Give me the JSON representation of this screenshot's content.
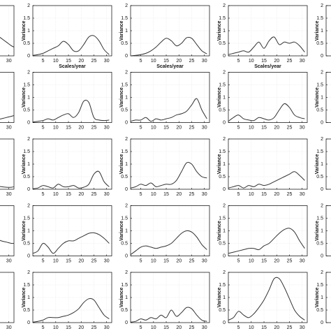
{
  "chart_data": [
    {
      "type": "line",
      "x": [
        25,
        27,
        29,
        31,
        32
      ],
      "values": [
        0.85,
        0.7,
        0.55,
        0.4,
        0.35
      ],
      "color": "#333",
      "xlim": [
        1,
        32
      ],
      "ylim": [
        0,
        2
      ],
      "xticks": [
        30
      ]
    },
    {
      "type": "line",
      "x": [
        1,
        3,
        5,
        7,
        9,
        11,
        13,
        15,
        17,
        19,
        21,
        23,
        25,
        27,
        29,
        31
      ],
      "values": [
        0.02,
        0.05,
        0.1,
        0.2,
        0.3,
        0.4,
        0.58,
        0.45,
        0.2,
        0.2,
        0.45,
        0.75,
        0.8,
        0.6,
        0.25,
        0.05
      ],
      "color": "#333",
      "xlim": [
        1,
        32
      ],
      "ylim": [
        0,
        2
      ],
      "xticks": [
        5,
        10,
        15,
        20,
        25,
        30
      ],
      "yticks": [
        0,
        0.5,
        1,
        1.5,
        2
      ],
      "xlabel": "Scales/year",
      "ylabel": "Variance"
    },
    {
      "type": "line",
      "x": [
        1,
        3,
        5,
        7,
        9,
        11,
        13,
        15,
        17,
        19,
        21,
        23,
        25,
        27,
        29,
        31
      ],
      "values": [
        0,
        0.02,
        0.05,
        0.1,
        0.2,
        0.35,
        0.55,
        0.7,
        0.6,
        0.4,
        0.5,
        0.72,
        0.7,
        0.45,
        0.2,
        0.08
      ],
      "color": "#333",
      "xlim": [
        1,
        32
      ],
      "ylim": [
        0,
        2
      ],
      "xticks": [
        5,
        10,
        15,
        20,
        25,
        30
      ],
      "yticks": [
        0,
        0.5,
        1,
        1.5,
        2
      ],
      "xlabel": "Scales/year",
      "ylabel": "Variance"
    },
    {
      "type": "line",
      "x": [
        1,
        3,
        5,
        7,
        9,
        11,
        13,
        15,
        17,
        19,
        21,
        23,
        25,
        27,
        29,
        31
      ],
      "values": [
        0.05,
        0.1,
        0.15,
        0.2,
        0.15,
        0.35,
        0.55,
        0.3,
        0.6,
        0.75,
        0.45,
        0.55,
        0.5,
        0.55,
        0.4,
        0.15
      ],
      "color": "#333",
      "xlim": [
        1,
        32
      ],
      "ylim": [
        0,
        2
      ],
      "xticks": [
        5,
        10,
        15,
        20,
        25,
        30
      ],
      "yticks": [
        0,
        0.5,
        1,
        1.5,
        2
      ],
      "xlabel": "Scales/year",
      "ylabel": "Variance"
    },
    {
      "type": "line",
      "xlim": [
        1,
        32
      ],
      "ylim": [
        0,
        2
      ],
      "yticks": [
        0,
        0.5,
        1,
        1.5,
        2
      ],
      "ylabel": "Variance"
    },
    {
      "type": "line",
      "x": [
        25,
        27,
        29,
        31,
        32
      ],
      "values": [
        0.1,
        0.15,
        0.2,
        0.25,
        0.28
      ],
      "color": "#333",
      "xlim": [
        1,
        32
      ],
      "ylim": [
        0,
        2
      ],
      "xticks": [
        30
      ]
    },
    {
      "type": "line",
      "x": [
        1,
        3,
        5,
        7,
        9,
        11,
        13,
        15,
        17,
        19,
        21,
        23,
        25,
        27,
        29,
        31
      ],
      "values": [
        0.02,
        0.05,
        0.08,
        0.15,
        0.1,
        0.2,
        0.3,
        0.35,
        0.2,
        0.4,
        0.85,
        0.8,
        0.2,
        0.1,
        0.08,
        0.1
      ],
      "color": "#333",
      "xlim": [
        1,
        32
      ],
      "ylim": [
        0,
        2
      ],
      "xticks": [
        5,
        10,
        15,
        20,
        25,
        30
      ],
      "yticks": [
        0,
        0.5,
        1,
        1.5,
        2
      ],
      "ylabel": "Variance"
    },
    {
      "type": "line",
      "x": [
        1,
        3,
        5,
        7,
        9,
        11,
        13,
        15,
        17,
        19,
        21,
        23,
        25,
        27,
        29,
        31
      ],
      "values": [
        0.05,
        0.1,
        0.1,
        0.2,
        0.05,
        0.15,
        0.1,
        0.15,
        0.2,
        0.3,
        0.35,
        0.45,
        0.7,
        0.95,
        0.5,
        0.15
      ],
      "color": "#333",
      "xlim": [
        1,
        32
      ],
      "ylim": [
        0,
        2
      ],
      "xticks": [
        5,
        10,
        15,
        20,
        25,
        30
      ],
      "yticks": [
        0,
        0.5,
        1,
        1.5,
        2
      ],
      "ylabel": "Variance"
    },
    {
      "type": "line",
      "x": [
        1,
        3,
        5,
        7,
        9,
        11,
        13,
        15,
        17,
        19,
        21,
        23,
        25,
        27,
        29,
        31
      ],
      "values": [
        0.05,
        0.2,
        0.3,
        0.15,
        0.1,
        0.08,
        0.2,
        0.15,
        0.1,
        0.2,
        0.5,
        0.75,
        0.6,
        0.3,
        0.2,
        0.15
      ],
      "color": "#333",
      "xlim": [
        1,
        32
      ],
      "ylim": [
        0,
        2
      ],
      "xticks": [
        5,
        10,
        15,
        20,
        25,
        30
      ],
      "yticks": [
        0,
        0.5,
        1,
        1.5,
        2
      ],
      "ylabel": "Variance"
    },
    {
      "type": "line",
      "xlim": [
        1,
        32
      ],
      "ylim": [
        0,
        2
      ],
      "yticks": [
        0,
        0.5,
        1,
        1.5,
        2
      ],
      "ylabel": "Variance"
    },
    {
      "type": "line",
      "x": [
        25,
        27,
        29,
        31,
        32
      ],
      "values": [
        0.15,
        0.1,
        0.08,
        0.08,
        0.1
      ],
      "color": "#333",
      "xlim": [
        1,
        32
      ],
      "ylim": [
        0,
        2
      ],
      "xticks": [
        30
      ]
    },
    {
      "type": "line",
      "x": [
        1,
        3,
        5,
        7,
        9,
        11,
        13,
        15,
        17,
        19,
        21,
        23,
        25,
        27,
        29,
        31
      ],
      "values": [
        0.02,
        0.05,
        0.15,
        0.1,
        0.05,
        0.2,
        0.1,
        0.1,
        0.15,
        0.05,
        0.08,
        0.2,
        0.6,
        0.7,
        0.3,
        0.1
      ],
      "color": "#333",
      "xlim": [
        1,
        32
      ],
      "ylim": [
        0,
        2
      ],
      "xticks": [
        5,
        10,
        15,
        20,
        25,
        30
      ],
      "yticks": [
        0,
        0.5,
        1,
        1.5,
        2
      ],
      "ylabel": "Variance"
    },
    {
      "type": "line",
      "x": [
        1,
        3,
        5,
        7,
        9,
        11,
        13,
        15,
        17,
        19,
        21,
        23,
        25,
        27,
        29,
        31
      ],
      "values": [
        0.05,
        0.1,
        0.2,
        0.15,
        0.25,
        0.1,
        0.15,
        0.2,
        0.2,
        0.35,
        0.7,
        1.05,
        1.0,
        0.7,
        0.5,
        0.45
      ],
      "color": "#333",
      "xlim": [
        1,
        32
      ],
      "ylim": [
        0,
        2
      ],
      "xticks": [
        5,
        10,
        15,
        20,
        25,
        30
      ],
      "yticks": [
        0,
        0.5,
        1,
        1.5,
        2
      ],
      "ylabel": "Variance"
    },
    {
      "type": "line",
      "x": [
        1,
        3,
        5,
        7,
        9,
        11,
        13,
        15,
        17,
        19,
        21,
        23,
        25,
        27,
        29,
        31
      ],
      "values": [
        0.05,
        0.1,
        0.15,
        0.05,
        0.15,
        0.1,
        0.2,
        0.15,
        0.2,
        0.3,
        0.4,
        0.5,
        0.6,
        0.7,
        0.55,
        0.35
      ],
      "color": "#333",
      "xlim": [
        1,
        32
      ],
      "ylim": [
        0,
        2
      ],
      "xticks": [
        5,
        10,
        15,
        20,
        25,
        30
      ],
      "yticks": [
        0,
        0.5,
        1,
        1.5,
        2
      ],
      "ylabel": "Variance"
    },
    {
      "type": "line",
      "xlim": [
        1,
        32
      ],
      "ylim": [
        0,
        2
      ],
      "yticks": [
        0,
        0.5,
        1,
        1.5,
        2
      ],
      "ylabel": "Variance"
    },
    {
      "type": "line",
      "x": [
        17,
        19,
        21,
        23,
        25,
        27,
        29,
        31,
        32
      ],
      "values": [
        1.1,
        1.0,
        0.9,
        0.8,
        0.7,
        0.6,
        0.55,
        0.5,
        0.5
      ],
      "color": "#333",
      "xlim": [
        1,
        32
      ],
      "ylim": [
        0,
        2
      ],
      "xticks": [
        30
      ]
    },
    {
      "type": "line",
      "x": [
        1,
        3,
        5,
        7,
        9,
        11,
        13,
        15,
        17,
        19,
        21,
        23,
        25,
        27,
        29,
        31
      ],
      "values": [
        0.1,
        0.2,
        0.5,
        0.35,
        0.1,
        0.3,
        0.5,
        0.6,
        0.6,
        0.7,
        0.8,
        0.9,
        0.92,
        0.85,
        0.7,
        0.5
      ],
      "color": "#333",
      "xlim": [
        1,
        32
      ],
      "ylim": [
        0,
        2
      ],
      "xticks": [
        5,
        10,
        15,
        20,
        25,
        30
      ],
      "yticks": [
        0,
        0.5,
        1,
        1.5,
        2
      ],
      "ylabel": "Variance"
    },
    {
      "type": "line",
      "x": [
        1,
        3,
        5,
        7,
        9,
        11,
        13,
        15,
        17,
        19,
        21,
        23,
        25,
        27,
        29,
        31
      ],
      "values": [
        0.05,
        0.2,
        0.35,
        0.4,
        0.35,
        0.3,
        0.35,
        0.4,
        0.5,
        0.7,
        0.9,
        1.0,
        0.95,
        0.75,
        0.45,
        0.25
      ],
      "color": "#333",
      "xlim": [
        1,
        32
      ],
      "ylim": [
        0,
        2
      ],
      "xticks": [
        5,
        10,
        15,
        20,
        25,
        30
      ],
      "yticks": [
        0,
        0.5,
        1,
        1.5,
        2
      ],
      "ylabel": "Variance"
    },
    {
      "type": "line",
      "x": [
        1,
        3,
        5,
        7,
        9,
        11,
        13,
        15,
        17,
        19,
        21,
        23,
        25,
        27,
        29,
        31
      ],
      "values": [
        0.1,
        0.15,
        0.2,
        0.25,
        0.3,
        0.3,
        0.25,
        0.4,
        0.5,
        0.7,
        0.9,
        1.05,
        1.1,
        0.95,
        0.6,
        0.3
      ],
      "color": "#333",
      "xlim": [
        1,
        32
      ],
      "ylim": [
        0,
        2
      ],
      "xticks": [
        5,
        10,
        15,
        20,
        25,
        30
      ],
      "yticks": [
        0,
        0.5,
        1,
        1.5,
        2
      ],
      "ylabel": "Variance"
    },
    {
      "type": "line",
      "xlim": [
        1,
        32
      ],
      "ylim": [
        0,
        2
      ],
      "yticks": [
        0,
        0.5,
        1,
        1.5,
        2
      ],
      "ylabel": "Variance"
    },
    {
      "type": "line",
      "xlim": [
        1,
        32
      ],
      "ylim": [
        0,
        2
      ],
      "xticks": [
        30
      ]
    },
    {
      "type": "line",
      "x": [
        1,
        3,
        5,
        7,
        9,
        11,
        13,
        15,
        17,
        19,
        21,
        23,
        25,
        27,
        29,
        31
      ],
      "values": [
        0.02,
        0.05,
        0.1,
        0.2,
        0.2,
        0.2,
        0.25,
        0.3,
        0.4,
        0.55,
        0.8,
        0.95,
        0.9,
        0.6,
        0.3,
        0.15
      ],
      "color": "#333",
      "xlim": [
        1,
        32
      ],
      "ylim": [
        0,
        2
      ],
      "xticks": [
        5,
        10,
        15,
        20,
        25,
        30
      ],
      "yticks": [
        0,
        0.5,
        1,
        1.5,
        2
      ],
      "ylabel": "Variance"
    },
    {
      "type": "line",
      "x": [
        1,
        3,
        5,
        7,
        9,
        11,
        13,
        15,
        17,
        19,
        21,
        23,
        25,
        27,
        29,
        31
      ],
      "values": [
        0.02,
        0.05,
        0.15,
        0.1,
        0.2,
        0.15,
        0.3,
        0.2,
        0.5,
        0.25,
        0.4,
        0.6,
        0.55,
        0.3,
        0.1,
        0.05
      ],
      "color": "#333",
      "xlim": [
        1,
        32
      ],
      "ylim": [
        0,
        2
      ],
      "xticks": [
        5,
        10,
        15,
        20,
        25,
        30
      ],
      "yticks": [
        0,
        0.5,
        1,
        1.5,
        2
      ],
      "ylabel": "Variance"
    },
    {
      "type": "line",
      "x": [
        1,
        3,
        5,
        7,
        9,
        11,
        13,
        15,
        17,
        19,
        21,
        23,
        25,
        27,
        29,
        31
      ],
      "values": [
        0.1,
        0.2,
        0.45,
        0.3,
        0.2,
        0.35,
        0.6,
        0.9,
        1.3,
        1.75,
        1.75,
        1.4,
        0.95,
        0.5,
        0.25,
        0.1
      ],
      "color": "#333",
      "xlim": [
        1,
        32
      ],
      "ylim": [
        0,
        2
      ],
      "xticks": [
        5,
        10,
        15,
        20,
        25,
        30
      ],
      "yticks": [
        0,
        0.5,
        1,
        1.5,
        2
      ],
      "ylabel": "Variance"
    },
    {
      "type": "line",
      "xlim": [
        1,
        32
      ],
      "ylim": [
        0,
        2
      ],
      "yticks": [
        0,
        0.5,
        1,
        1.5,
        2
      ],
      "ylabel": "Variance"
    }
  ]
}
